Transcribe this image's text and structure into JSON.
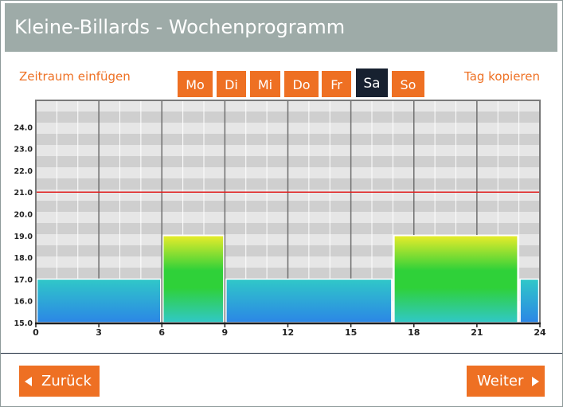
{
  "window": {
    "title": "Kleine-Billards - Wochenprogramm"
  },
  "actions": {
    "insert_period": "Zeitraum einfügen",
    "copy_day": "Tag kopieren"
  },
  "days": [
    {
      "label": "Mo",
      "active": false
    },
    {
      "label": "Di",
      "active": false
    },
    {
      "label": "Mi",
      "active": false
    },
    {
      "label": "Do",
      "active": false
    },
    {
      "label": "Fr",
      "active": false
    },
    {
      "label": "Sa",
      "active": true
    },
    {
      "label": "So",
      "active": false
    }
  ],
  "colors": {
    "accent": "#ee7023",
    "active_day": "#172130",
    "title_bar": "#9eaba8",
    "comfort_top": "#e9ec2a",
    "comfort_mid": "#2fd139",
    "eco_top": "#30c8c8",
    "eco_bottom": "#2b86e6",
    "setpoint_line": "#e02020"
  },
  "chart_data": {
    "type": "area",
    "x_ticks": [
      "0",
      "3",
      "6",
      "9",
      "12",
      "15",
      "18",
      "21",
      "24"
    ],
    "y_ticks": [
      "24.0",
      "23.0",
      "22.0",
      "21.0",
      "20.0",
      "19.0",
      "18.0",
      "17.0",
      "16.0",
      "15.0"
    ],
    "xlim": [
      0,
      24
    ],
    "ylim": [
      15,
      25
    ],
    "reference_line": 21.0,
    "segments": [
      {
        "start": 0,
        "end": 6,
        "temp": 17.0
      },
      {
        "start": 6,
        "end": 9,
        "temp": 19.0
      },
      {
        "start": 9,
        "end": 17,
        "temp": 17.0
      },
      {
        "start": 17,
        "end": 23,
        "temp": 19.0
      },
      {
        "start": 23,
        "end": 24,
        "temp": 17.0
      }
    ]
  },
  "nav": {
    "back": "Zurück",
    "next": "Weiter"
  }
}
